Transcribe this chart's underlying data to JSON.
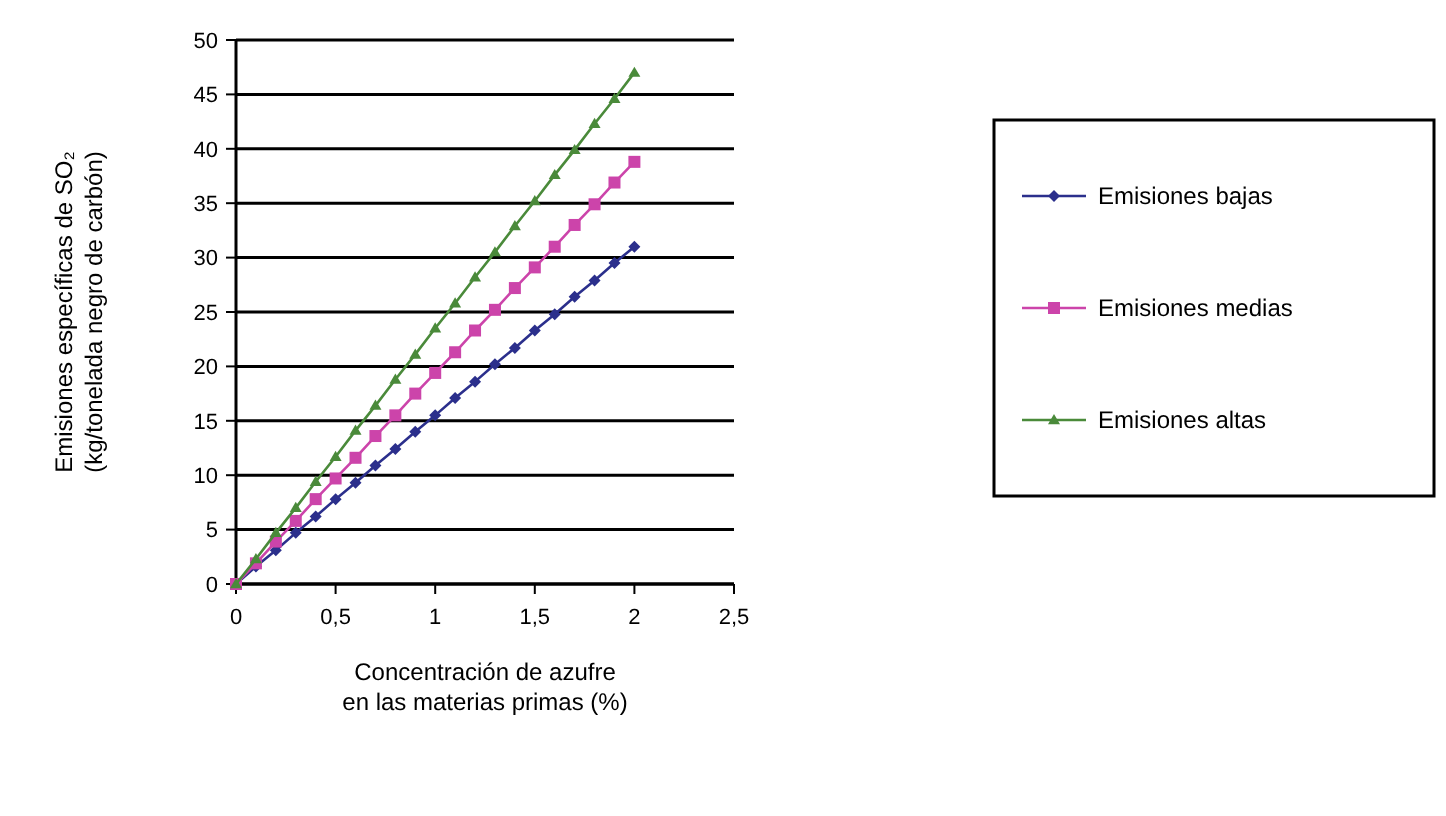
{
  "chart_data": {
    "type": "line",
    "xlabel": "Concentración de azufre\nen las materias primas (%)",
    "ylabel": "Emisiones específicas de SO₂\n(kg/tonelada negro de carbón)",
    "x": [
      0,
      0.1,
      0.2,
      0.3,
      0.4,
      0.5,
      0.6,
      0.7,
      0.8,
      0.9,
      1,
      1.1,
      1.2,
      1.3,
      1.4,
      1.5,
      1.6,
      1.7,
      1.8,
      1.9,
      2
    ],
    "series": [
      {
        "name": "Emisiones bajas",
        "color": "#2b2f8c",
        "marker": "diamond",
        "values": [
          0,
          1.6,
          3.1,
          4.7,
          6.2,
          7.8,
          9.3,
          10.9,
          12.4,
          14,
          15.5,
          17.1,
          18.6,
          20.2,
          21.7,
          23.3,
          24.8,
          26.4,
          27.9,
          29.5,
          31
        ]
      },
      {
        "name": "Emisiones medias",
        "color": "#cc44aa",
        "marker": "square",
        "values": [
          0,
          1.9,
          3.9,
          5.8,
          7.8,
          9.7,
          11.6,
          13.6,
          15.5,
          17.5,
          19.4,
          21.3,
          23.3,
          25.2,
          27.2,
          29.1,
          31,
          33,
          34.9,
          36.9,
          38.8
        ]
      },
      {
        "name": "Emisiones altas",
        "color": "#4a8a3a",
        "marker": "triangle",
        "values": [
          0,
          2.3,
          4.7,
          7,
          9.4,
          11.7,
          14.1,
          16.4,
          18.8,
          21.1,
          23.5,
          25.8,
          28.2,
          30.5,
          32.9,
          35.2,
          37.6,
          39.9,
          42.3,
          44.6,
          47
        ]
      }
    ],
    "xlim": [
      0,
      2.5
    ],
    "xticks": [
      0,
      {
        "value": 0.5,
        "label": "0,5"
      },
      1,
      {
        "value": 1.5,
        "label": "1,5"
      },
      2,
      {
        "value": 2.5,
        "label": "2,5"
      }
    ],
    "ylim": [
      0,
      50
    ],
    "yticks": [
      0,
      5,
      10,
      15,
      20,
      25,
      30,
      35,
      40,
      45,
      50
    ],
    "grid": "y",
    "legend": "right",
    "line_style": "solid"
  }
}
